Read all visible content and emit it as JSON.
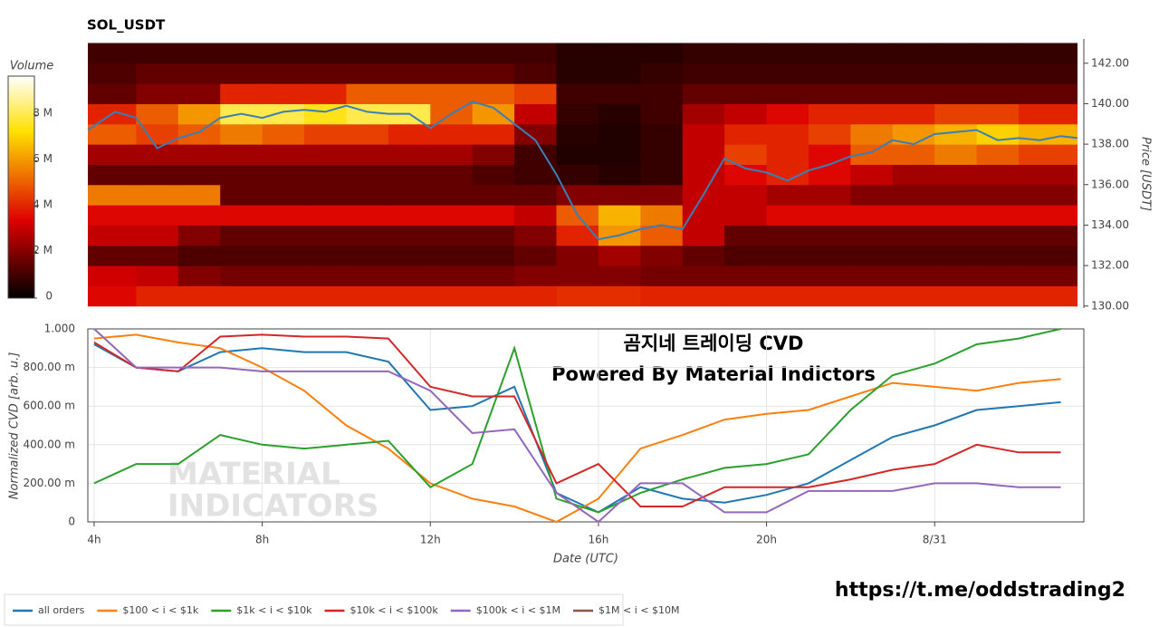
{
  "chart_data": [
    {
      "type": "heatmap",
      "title": "SOL_USDT",
      "xlim": [
        3.85,
        27.4
      ],
      "ylim": [
        129.9,
        143.2
      ],
      "xbins": [
        3.85,
        5,
        6,
        7,
        8,
        9,
        10,
        11,
        12,
        13,
        14,
        15,
        16,
        17,
        18,
        19,
        20,
        21,
        22,
        23,
        24,
        25,
        26,
        27.4
      ],
      "ybins": [
        130,
        131,
        132,
        133,
        134,
        135,
        136,
        137,
        138,
        139,
        140,
        141,
        142,
        143
      ],
      "z": [
        [
          3.5,
          4,
          4,
          4,
          4,
          4,
          4,
          4,
          4,
          4,
          4,
          4.2,
          4.2,
          4,
          4,
          4,
          4,
          4,
          4,
          4,
          4,
          4,
          4
        ],
        [
          3.2,
          3,
          2,
          1.8,
          1.8,
          1.8,
          1.8,
          1.8,
          1.8,
          1.8,
          2,
          2,
          2,
          1.8,
          1.8,
          1.8,
          1.8,
          1.8,
          1.8,
          1.8,
          1.8,
          1.8,
          1.8
        ],
        [
          1.5,
          1.5,
          1.2,
          1.2,
          1.2,
          1.2,
          1.2,
          1.2,
          1.2,
          1.2,
          1.5,
          2,
          2.5,
          2,
          1.5,
          1.2,
          1.2,
          1.2,
          1.2,
          1.2,
          1.2,
          1.2,
          1.2
        ],
        [
          3,
          3,
          2,
          1.5,
          1.5,
          1.5,
          1.5,
          1.5,
          1.5,
          1.5,
          2,
          4,
          6,
          5,
          3,
          1.5,
          1.5,
          1.5,
          1.5,
          1.5,
          1.5,
          1.5,
          1.5
        ],
        [
          3.5,
          3.5,
          3.5,
          3.5,
          3.5,
          3.5,
          3.5,
          3.5,
          3.5,
          3.5,
          3,
          5,
          6.5,
          5.5,
          3,
          3,
          3.5,
          3.5,
          3.5,
          3.5,
          3.5,
          3.5,
          3.5
        ],
        [
          5.5,
          5.5,
          5.5,
          1.5,
          1.5,
          1.5,
          1.5,
          1.5,
          1.5,
          1.5,
          1.5,
          2,
          2,
          2,
          3,
          3,
          2.5,
          2.5,
          2,
          2,
          2,
          2,
          2
        ],
        [
          1.5,
          1.5,
          1.5,
          1.5,
          1.5,
          1.5,
          1.5,
          1.5,
          1.5,
          1.2,
          1,
          0.8,
          0.6,
          0.8,
          3,
          3.5,
          4,
          3.5,
          3,
          2.5,
          2.5,
          2.5,
          2.5
        ],
        [
          2.5,
          2.5,
          2.5,
          2.5,
          2.5,
          2.5,
          2.5,
          2.5,
          2.5,
          2,
          1,
          0.5,
          0.5,
          0.8,
          3,
          4.5,
          4,
          3.5,
          5,
          5,
          5.5,
          5,
          4.5
        ],
        [
          5,
          4.5,
          5,
          5.5,
          5,
          4.5,
          4.5,
          4,
          4,
          4,
          2,
          0.6,
          0.5,
          0.8,
          3,
          4,
          4,
          4.5,
          5.5,
          6,
          6.5,
          7,
          6.5
        ],
        [
          4,
          5,
          6,
          8,
          8,
          7.5,
          8,
          8,
          5,
          6,
          3,
          0.8,
          0.6,
          1,
          2.5,
          3,
          3.5,
          4,
          4,
          4,
          4.5,
          4.5,
          4
        ],
        [
          1.5,
          2,
          2,
          4,
          4,
          4,
          5,
          5,
          5,
          5,
          4.5,
          1,
          1,
          1,
          1.5,
          1.5,
          1.5,
          1.5,
          1.5,
          1.5,
          1.5,
          1.5,
          1.5
        ],
        [
          1.2,
          1.5,
          1.5,
          1.5,
          1.5,
          1.5,
          1.5,
          1.5,
          1.5,
          1.5,
          1.2,
          0.6,
          0.6,
          0.8,
          1,
          1,
          1,
          1,
          1,
          1,
          1,
          1,
          1
        ],
        [
          1,
          1,
          1,
          1,
          1,
          1,
          1,
          1,
          1,
          1,
          1,
          0.6,
          0.6,
          0.6,
          0.8,
          0.8,
          0.8,
          0.8,
          0.8,
          0.8,
          0.8,
          0.8,
          0.8
        ]
      ],
      "colorscale": [
        [
          0,
          "#000000"
        ],
        [
          0.35,
          "#dd0000"
        ],
        [
          0.75,
          "#ffe000"
        ],
        [
          1,
          "#ffffff"
        ]
      ],
      "colorbar": {
        "title": "Volume",
        "range": [
          0,
          9.7
        ],
        "ticks": [
          0,
          {
            "value": 2,
            "label": "2 M"
          },
          {
            "value": 4,
            "label": "4 M"
          },
          {
            "value": 6,
            "label": "6 M"
          },
          {
            "value": 8,
            "label": "8 M"
          }
        ]
      },
      "y_label": "Price [USDT]",
      "yticks": [
        {
          "value": 130,
          "label": "130.00"
        },
        {
          "value": 132,
          "label": "132.00"
        },
        {
          "value": 134,
          "label": "134.00"
        },
        {
          "value": 136,
          "label": "136.00"
        },
        {
          "value": 138,
          "label": "138.00"
        },
        {
          "value": 140,
          "label": "140.00"
        },
        {
          "value": 142,
          "label": "142.00"
        }
      ],
      "line": {
        "color": "#3a7fb5",
        "x": [
          3.85,
          4.5,
          5,
          5.5,
          6,
          6.5,
          7,
          7.5,
          8,
          8.5,
          9,
          9.5,
          10,
          10.5,
          11,
          11.5,
          12,
          12.5,
          13,
          13.5,
          14,
          14.5,
          15,
          15.5,
          16,
          16.5,
          17,
          17.5,
          18,
          18.5,
          19,
          19.5,
          20,
          20.5,
          21,
          21.5,
          22,
          22.5,
          23,
          23.5,
          24,
          24.5,
          25,
          25.5,
          26,
          26.5,
          27,
          27.4
        ],
        "values": [
          138.7,
          139.6,
          139.3,
          137.8,
          138.3,
          138.6,
          139.3,
          139.5,
          139.3,
          139.6,
          139.7,
          139.6,
          139.9,
          139.6,
          139.5,
          139.5,
          138.8,
          139.5,
          140.1,
          139.8,
          139.0,
          138.2,
          136.5,
          134.5,
          133.3,
          133.5,
          133.8,
          134.0,
          133.8,
          135.5,
          137.3,
          136.8,
          136.6,
          136.2,
          136.7,
          137.0,
          137.4,
          137.6,
          138.2,
          138.0,
          138.5,
          138.6,
          138.7,
          138.2,
          138.3,
          138.2,
          138.4,
          138.3
        ]
      }
    },
    {
      "type": "line",
      "x_label": "Date (UTC)",
      "y_label": "Normalized CVD [arb. u.]",
      "xlim": [
        3.85,
        27.55
      ],
      "ylim": [
        0,
        1
      ],
      "xticks": [
        {
          "value": 4,
          "label": "4h"
        },
        {
          "value": 8,
          "label": "8h"
        },
        {
          "value": 12,
          "label": "12h"
        },
        {
          "value": 16,
          "label": "16h"
        },
        {
          "value": 20,
          "label": "20h"
        },
        {
          "value": 24,
          "label": "8/31"
        }
      ],
      "yticks": [
        0,
        {
          "value": 0.2,
          "label": "200.00 m"
        },
        {
          "value": 0.4,
          "label": "400.00 m"
        },
        {
          "value": 0.6,
          "label": "600.00 m"
        },
        {
          "value": 0.8,
          "label": "800.00 m"
        },
        {
          "value": 1,
          "label": "1.000"
        }
      ],
      "grid": true,
      "x": [
        4,
        5,
        6,
        7,
        8,
        9,
        10,
        11,
        12,
        13,
        14,
        15,
        16,
        17,
        18,
        19,
        20,
        21,
        22,
        23,
        24,
        25,
        26,
        27
      ],
      "series": [
        {
          "name": "all orders",
          "color": "#1f77b4",
          "values": [
            0.92,
            0.8,
            0.78,
            0.88,
            0.9,
            0.88,
            0.88,
            0.83,
            0.58,
            0.6,
            0.7,
            0.15,
            0.05,
            0.18,
            0.12,
            0.1,
            0.14,
            0.2,
            0.32,
            0.44,
            0.5,
            0.58,
            0.6,
            0.62
          ]
        },
        {
          "name": "$100 < i < $1k",
          "color": "#ff7f0e",
          "values": [
            0.95,
            0.97,
            0.93,
            0.9,
            0.8,
            0.68,
            0.5,
            0.38,
            0.2,
            0.12,
            0.08,
            0,
            0.12,
            0.38,
            0.45,
            0.53,
            0.56,
            0.58,
            0.65,
            0.72,
            0.7,
            0.68,
            0.72,
            0.74
          ]
        },
        {
          "name": "$1k < i < $10k",
          "color": "#2ca02c",
          "values": [
            0.2,
            0.3,
            0.3,
            0.45,
            0.4,
            0.38,
            0.4,
            0.42,
            0.18,
            0.3,
            0.9,
            0.12,
            0.05,
            0.15,
            0.22,
            0.28,
            0.3,
            0.35,
            0.58,
            0.76,
            0.82,
            0.92,
            0.95,
            1
          ]
        },
        {
          "name": "$10k < i < $100k",
          "color": "#d62728",
          "values": [
            0.93,
            0.8,
            0.78,
            0.96,
            0.97,
            0.96,
            0.96,
            0.95,
            0.7,
            0.65,
            0.65,
            0.2,
            0.3,
            0.08,
            0.08,
            0.18,
            0.18,
            0.18,
            0.22,
            0.27,
            0.3,
            0.4,
            0.36,
            0.36
          ]
        },
        {
          "name": "$100k < i < $1M",
          "color": "#9467bd",
          "values": [
            1,
            0.8,
            0.8,
            0.8,
            0.78,
            0.78,
            0.78,
            0.78,
            0.68,
            0.46,
            0.48,
            0.15,
            0,
            0.2,
            0.2,
            0.05,
            0.05,
            0.16,
            0.16,
            0.16,
            0.2,
            0.2,
            0.18,
            0.18
          ]
        },
        {
          "name": "$1M < i < $10M",
          "color": "#8c564b",
          "values": [
            null,
            null,
            null,
            null,
            null,
            null,
            null,
            null,
            null,
            null,
            null,
            null,
            null,
            null,
            null,
            null,
            null,
            null,
            null,
            null,
            null,
            null,
            null,
            null
          ]
        }
      ],
      "annotations": [
        "곰지네 트레이딩 CVD",
        "Powered By Material Indictors"
      ],
      "watermark": [
        "MATERIAL",
        "INDICATORS"
      ]
    }
  ],
  "link": "https://t.me/oddstrading2"
}
